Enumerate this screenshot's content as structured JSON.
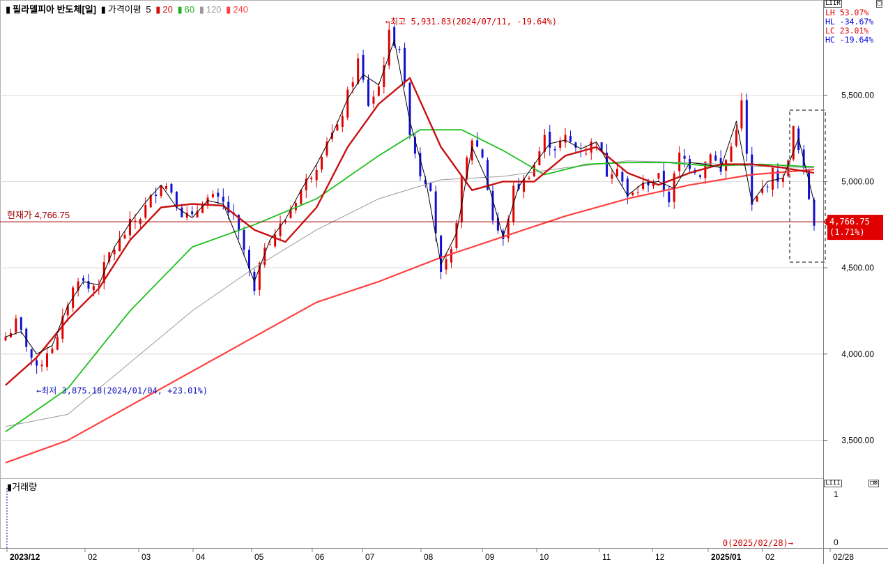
{
  "header": {
    "title": "필라델피아 반도체[일]",
    "indicator_label": "가격이평",
    "periods": [
      {
        "label": "5",
        "color": "#000000"
      },
      {
        "label": "20",
        "color": "#d01010"
      },
      {
        "label": "60",
        "color": "#20b020"
      },
      {
        "label": "120",
        "color": "#999999"
      },
      {
        "label": "240",
        "color": "#ff4040"
      }
    ]
  },
  "stats": [
    {
      "key": "LH",
      "value": "53.07%",
      "color": "#e00000"
    },
    {
      "key": "HL",
      "value": "-34.67%",
      "color": "#0000e0"
    },
    {
      "key": "LC",
      "value": "23.01%",
      "color": "#e00000"
    },
    {
      "key": "HC",
      "value": "-19.64%",
      "color": "#0000e0"
    }
  ],
  "annotations": {
    "high": "←최고 5,931.83(2024/07/11, -19.64%)",
    "low": "←최저 3,875.18(2024/01/04, +23.01%)",
    "current_label": "현재가 4,766.75",
    "current_box_value": "4,766.75",
    "current_box_pct": "(1.71%)",
    "volume_note": "0(2025/02/28)→"
  },
  "volume": {
    "title": "거래량",
    "ticks": [
      "1",
      "0"
    ]
  },
  "colors": {
    "up": "#e00000",
    "down": "#1010d0",
    "ma5": "#000000",
    "ma20": "#c81010",
    "ma60": "#20c020",
    "ma120": "#999999",
    "ma240": "#ff4040",
    "current_line": "#a00000"
  },
  "chart_data": {
    "type": "candlestick",
    "y_ticks": [
      3500,
      4000,
      4500,
      5000,
      5500
    ],
    "y_tick_labels": [
      "3,500.00",
      "4,000.00",
      "4,500.00",
      "5,000.00",
      "5,500.00"
    ],
    "ylim": [
      3280,
      6020
    ],
    "x_labels": [
      "2023/12",
      "02",
      "03",
      "04",
      "05",
      "06",
      "07",
      "08",
      "09",
      "10",
      "11",
      "12",
      "2025/01",
      "02",
      "02/28"
    ],
    "current_price": 4766.75,
    "high": 5931.83,
    "low": 3875.18,
    "close_points": [
      [
        0,
        4100
      ],
      [
        2,
        4180
      ],
      [
        4,
        4060
      ],
      [
        6,
        3900
      ],
      [
        8,
        4020
      ],
      [
        10,
        4080
      ],
      [
        12,
        4300
      ],
      [
        14,
        4450
      ],
      [
        16,
        4380
      ],
      [
        18,
        4420
      ],
      [
        20,
        4580
      ],
      [
        22,
        4650
      ],
      [
        24,
        4750
      ],
      [
        26,
        4800
      ],
      [
        28,
        4900
      ],
      [
        30,
        5000
      ],
      [
        32,
        4950
      ],
      [
        34,
        4820
      ],
      [
        36,
        4780
      ],
      [
        38,
        4900
      ],
      [
        40,
        4900
      ],
      [
        42,
        4870
      ],
      [
        44,
        4780
      ],
      [
        46,
        4600
      ],
      [
        48,
        4350
      ],
      [
        50,
        4640
      ],
      [
        52,
        4700
      ],
      [
        54,
        4780
      ],
      [
        56,
        4900
      ],
      [
        58,
        5000
      ],
      [
        60,
        5100
      ],
      [
        62,
        5250
      ],
      [
        64,
        5300
      ],
      [
        66,
        5500
      ],
      [
        68,
        5700
      ],
      [
        70,
        5450
      ],
      [
        72,
        5550
      ],
      [
        74,
        5850
      ],
      [
        76,
        5780
      ],
      [
        78,
        5300
      ],
      [
        80,
        5050
      ],
      [
        82,
        4980
      ],
      [
        84,
        4450
      ],
      [
        86,
        4580
      ],
      [
        88,
        5000
      ],
      [
        90,
        5250
      ],
      [
        92,
        5150
      ],
      [
        94,
        4780
      ],
      [
        96,
        4650
      ],
      [
        98,
        4950
      ],
      [
        100,
        5000
      ],
      [
        102,
        5100
      ],
      [
        104,
        5250
      ],
      [
        106,
        5200
      ],
      [
        108,
        5250
      ],
      [
        110,
        5200
      ],
      [
        112,
        5180
      ],
      [
        114,
        5250
      ],
      [
        116,
        5050
      ],
      [
        118,
        5100
      ],
      [
        120,
        4900
      ],
      [
        122,
        4950
      ],
      [
        124,
        5000
      ],
      [
        126,
        5020
      ],
      [
        128,
        4900
      ],
      [
        130,
        5150
      ],
      [
        132,
        5100
      ],
      [
        134,
        5050
      ],
      [
        136,
        5180
      ],
      [
        138,
        5050
      ],
      [
        140,
        5200
      ],
      [
        142,
        5450
      ],
      [
        144,
        4850
      ],
      [
        146,
        4950
      ],
      [
        148,
        5050
      ],
      [
        150,
        5000
      ],
      [
        152,
        5300
      ],
      [
        154,
        5050
      ],
      [
        156,
        4766.75
      ]
    ],
    "ma5": [
      [
        0,
        4100
      ],
      [
        3,
        4130
      ],
      [
        6,
        4000
      ],
      [
        9,
        4050
      ],
      [
        12,
        4280
      ],
      [
        15,
        4420
      ],
      [
        18,
        4400
      ],
      [
        21,
        4620
      ],
      [
        24,
        4760
      ],
      [
        27,
        4880
      ],
      [
        30,
        4980
      ],
      [
        33,
        4850
      ],
      [
        36,
        4790
      ],
      [
        39,
        4890
      ],
      [
        42,
        4870
      ],
      [
        45,
        4650
      ],
      [
        48,
        4420
      ],
      [
        51,
        4660
      ],
      [
        54,
        4780
      ],
      [
        57,
        4950
      ],
      [
        60,
        5100
      ],
      [
        63,
        5270
      ],
      [
        66,
        5480
      ],
      [
        69,
        5620
      ],
      [
        72,
        5560
      ],
      [
        75,
        5820
      ],
      [
        78,
        5350
      ],
      [
        81,
        5020
      ],
      [
        84,
        4520
      ],
      [
        87,
        4700
      ],
      [
        90,
        5200
      ],
      [
        93,
        5000
      ],
      [
        96,
        4680
      ],
      [
        99,
        4970
      ],
      [
        102,
        5100
      ],
      [
        105,
        5220
      ],
      [
        108,
        5240
      ],
      [
        111,
        5190
      ],
      [
        114,
        5230
      ],
      [
        117,
        5070
      ],
      [
        120,
        4920
      ],
      [
        123,
        4990
      ],
      [
        126,
        5000
      ],
      [
        129,
        4960
      ],
      [
        132,
        5110
      ],
      [
        135,
        5100
      ],
      [
        138,
        5080
      ],
      [
        141,
        5350
      ],
      [
        144,
        4880
      ],
      [
        147,
        5000
      ],
      [
        150,
        5020
      ],
      [
        153,
        5250
      ],
      [
        156,
        4880
      ]
    ],
    "ma20": [
      [
        0,
        3820
      ],
      [
        6,
        3980
      ],
      [
        12,
        4200
      ],
      [
        18,
        4380
      ],
      [
        24,
        4660
      ],
      [
        30,
        4850
      ],
      [
        36,
        4870
      ],
      [
        42,
        4860
      ],
      [
        48,
        4720
      ],
      [
        54,
        4650
      ],
      [
        60,
        4850
      ],
      [
        66,
        5200
      ],
      [
        72,
        5450
      ],
      [
        78,
        5600
      ],
      [
        84,
        5200
      ],
      [
        90,
        4950
      ],
      [
        96,
        5000
      ],
      [
        102,
        5000
      ],
      [
        108,
        5150
      ],
      [
        114,
        5200
      ],
      [
        120,
        5050
      ],
      [
        126,
        4980
      ],
      [
        132,
        5050
      ],
      [
        138,
        5100
      ],
      [
        144,
        5100
      ],
      [
        150,
        5080
      ],
      [
        156,
        5050
      ]
    ],
    "ma60": [
      [
        0,
        3550
      ],
      [
        12,
        3800
      ],
      [
        24,
        4250
      ],
      [
        36,
        4620
      ],
      [
        48,
        4750
      ],
      [
        60,
        4900
      ],
      [
        72,
        5150
      ],
      [
        80,
        5300
      ],
      [
        88,
        5300
      ],
      [
        96,
        5180
      ],
      [
        104,
        5040
      ],
      [
        112,
        5100
      ],
      [
        120,
        5110
      ],
      [
        128,
        5110
      ],
      [
        136,
        5090
      ],
      [
        146,
        5100
      ],
      [
        156,
        5085
      ]
    ],
    "ma120": [
      [
        0,
        3580
      ],
      [
        12,
        3650
      ],
      [
        24,
        3950
      ],
      [
        36,
        4250
      ],
      [
        48,
        4500
      ],
      [
        60,
        4720
      ],
      [
        72,
        4900
      ],
      [
        84,
        5010
      ],
      [
        96,
        5030
      ],
      [
        108,
        5080
      ],
      [
        120,
        5120
      ],
      [
        132,
        5110
      ],
      [
        144,
        5090
      ],
      [
        156,
        5080
      ]
    ],
    "ma240": [
      [
        0,
        3370
      ],
      [
        12,
        3500
      ],
      [
        24,
        3700
      ],
      [
        36,
        3900
      ],
      [
        48,
        4100
      ],
      [
        60,
        4300
      ],
      [
        72,
        4420
      ],
      [
        84,
        4560
      ],
      [
        96,
        4680
      ],
      [
        108,
        4800
      ],
      [
        120,
        4900
      ],
      [
        132,
        4980
      ],
      [
        144,
        5040
      ],
      [
        156,
        5070
      ]
    ]
  }
}
